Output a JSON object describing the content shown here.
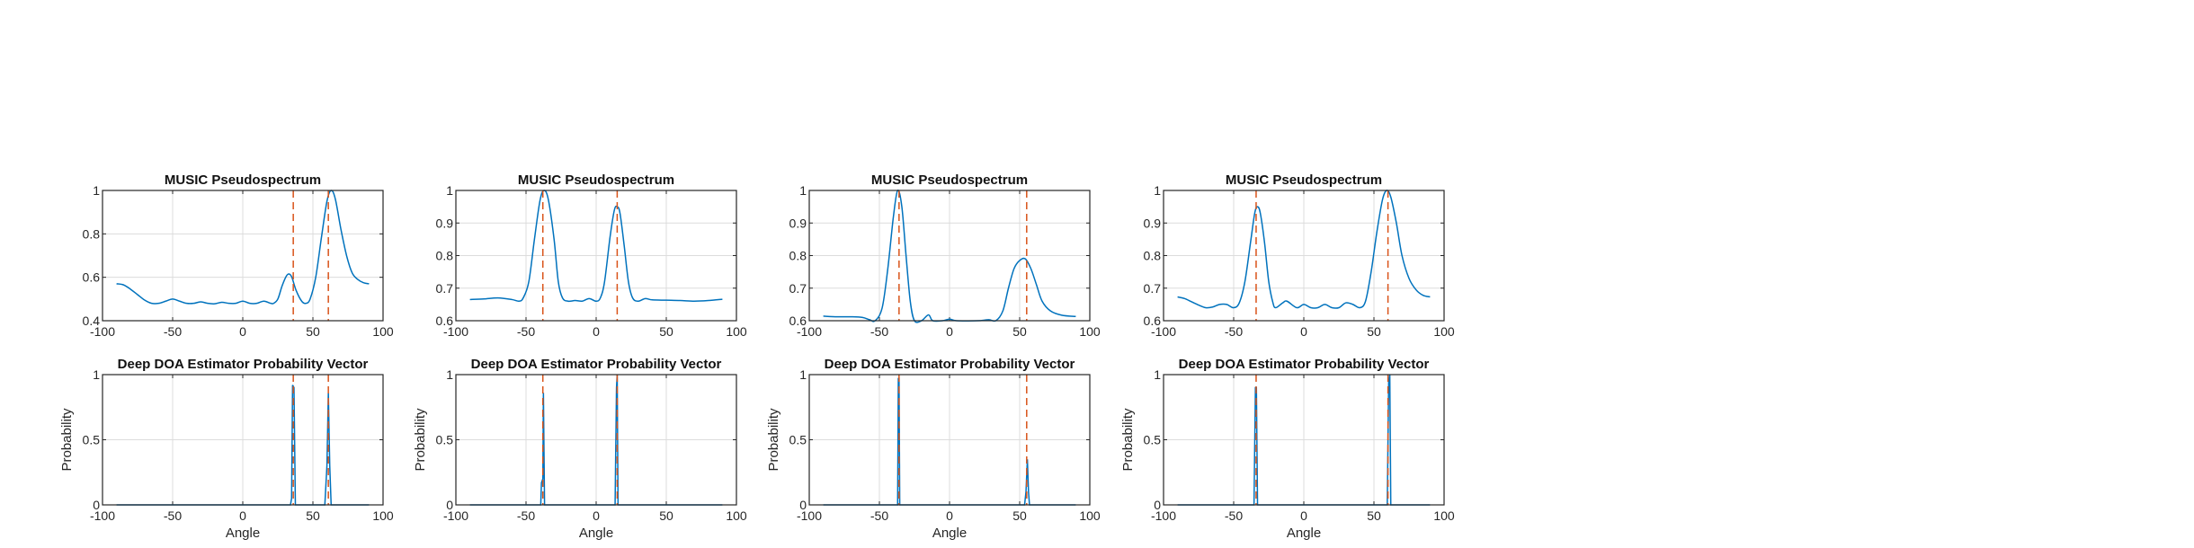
{
  "colors": {
    "curve": "#0072BD",
    "truth": "#D95319",
    "grid": "#dcdcdc",
    "axis": "#262626"
  },
  "chart_data": [
    {
      "type": "line",
      "title": "MUSIC Pseudospectrum",
      "xlabel": "",
      "ylabel": "",
      "xlim": [
        -100,
        100
      ],
      "ylim": [
        0.4,
        1
      ],
      "xticks": [
        -100,
        -50,
        0,
        50,
        100
      ],
      "yticks": [
        0.4,
        0.6,
        0.8,
        1
      ],
      "ytick_labels": [
        "0.4",
        "0.6",
        "0.8",
        "1"
      ],
      "grid": true,
      "truth_angles": [
        36,
        61
      ],
      "points": [
        [
          -90,
          0.57
        ],
        [
          -85,
          0.565
        ],
        [
          -80,
          0.545
        ],
        [
          -75,
          0.52
        ],
        [
          -70,
          0.495
        ],
        [
          -65,
          0.48
        ],
        [
          -60,
          0.48
        ],
        [
          -55,
          0.49
        ],
        [
          -50,
          0.5
        ],
        [
          -45,
          0.49
        ],
        [
          -40,
          0.48
        ],
        [
          -35,
          0.48
        ],
        [
          -30,
          0.487
        ],
        [
          -25,
          0.48
        ],
        [
          -20,
          0.478
        ],
        [
          -15,
          0.485
        ],
        [
          -10,
          0.48
        ],
        [
          -5,
          0.48
        ],
        [
          0,
          0.49
        ],
        [
          5,
          0.48
        ],
        [
          10,
          0.48
        ],
        [
          15,
          0.49
        ],
        [
          20,
          0.48
        ],
        [
          22,
          0.48
        ],
        [
          25,
          0.5
        ],
        [
          28,
          0.56
        ],
        [
          31,
          0.605
        ],
        [
          33,
          0.615
        ],
        [
          35,
          0.6
        ],
        [
          38,
          0.54
        ],
        [
          42,
          0.49
        ],
        [
          45,
          0.48
        ],
        [
          48,
          0.5
        ],
        [
          52,
          0.6
        ],
        [
          56,
          0.78
        ],
        [
          60,
          0.95
        ],
        [
          63,
          1.0
        ],
        [
          66,
          0.96
        ],
        [
          70,
          0.82
        ],
        [
          74,
          0.7
        ],
        [
          78,
          0.62
        ],
        [
          82,
          0.59
        ],
        [
          86,
          0.575
        ],
        [
          90,
          0.57
        ]
      ]
    },
    {
      "type": "line",
      "title": "MUSIC Pseudospectrum",
      "xlabel": "",
      "ylabel": "",
      "xlim": [
        -100,
        100
      ],
      "ylim": [
        0.6,
        1
      ],
      "xticks": [
        -100,
        -50,
        0,
        50,
        100
      ],
      "yticks": [
        0.6,
        0.7,
        0.8,
        0.9,
        1
      ],
      "ytick_labels": [
        "0.6",
        "0.7",
        "0.8",
        "0.9",
        "1"
      ],
      "grid": true,
      "truth_angles": [
        -38,
        15
      ],
      "points": [
        [
          -90,
          0.665
        ],
        [
          -80,
          0.667
        ],
        [
          -70,
          0.67
        ],
        [
          -60,
          0.665
        ],
        [
          -55,
          0.66
        ],
        [
          -52,
          0.67
        ],
        [
          -48,
          0.72
        ],
        [
          -44,
          0.85
        ],
        [
          -40,
          0.97
        ],
        [
          -37,
          1.0
        ],
        [
          -34,
          0.97
        ],
        [
          -30,
          0.85
        ],
        [
          -27,
          0.72
        ],
        [
          -24,
          0.67
        ],
        [
          -20,
          0.66
        ],
        [
          -15,
          0.662
        ],
        [
          -10,
          0.66
        ],
        [
          -5,
          0.668
        ],
        [
          0,
          0.66
        ],
        [
          3,
          0.67
        ],
        [
          6,
          0.72
        ],
        [
          10,
          0.86
        ],
        [
          13,
          0.94
        ],
        [
          15,
          0.95
        ],
        [
          17,
          0.93
        ],
        [
          20,
          0.83
        ],
        [
          23,
          0.72
        ],
        [
          26,
          0.67
        ],
        [
          30,
          0.66
        ],
        [
          35,
          0.668
        ],
        [
          40,
          0.664
        ],
        [
          50,
          0.663
        ],
        [
          60,
          0.662
        ],
        [
          70,
          0.66
        ],
        [
          80,
          0.662
        ],
        [
          90,
          0.666
        ]
      ]
    },
    {
      "type": "line",
      "title": "MUSIC Pseudospectrum",
      "xlabel": "",
      "ylabel": "",
      "xlim": [
        -100,
        100
      ],
      "ylim": [
        0.6,
        1
      ],
      "xticks": [
        -100,
        -50,
        0,
        50,
        100
      ],
      "yticks": [
        0.6,
        0.7,
        0.8,
        0.9,
        1
      ],
      "ytick_labels": [
        "0.6",
        "0.7",
        "0.8",
        "0.9",
        "1"
      ],
      "grid": true,
      "truth_angles": [
        -36,
        55
      ],
      "points": [
        [
          -90,
          0.614
        ],
        [
          -80,
          0.612
        ],
        [
          -70,
          0.612
        ],
        [
          -62,
          0.61
        ],
        [
          -57,
          0.603
        ],
        [
          -53,
          0.6
        ],
        [
          -48,
          0.64
        ],
        [
          -44,
          0.76
        ],
        [
          -40,
          0.92
        ],
        [
          -37,
          1.0
        ],
        [
          -34,
          0.95
        ],
        [
          -31,
          0.8
        ],
        [
          -28,
          0.66
        ],
        [
          -25,
          0.6
        ],
        [
          -20,
          0.6
        ],
        [
          -15,
          0.618
        ],
        [
          -12,
          0.6
        ],
        [
          -5,
          0.6
        ],
        [
          0,
          0.605
        ],
        [
          5,
          0.6
        ],
        [
          20,
          0.6
        ],
        [
          28,
          0.603
        ],
        [
          33,
          0.6
        ],
        [
          38,
          0.63
        ],
        [
          42,
          0.7
        ],
        [
          46,
          0.76
        ],
        [
          50,
          0.785
        ],
        [
          54,
          0.79
        ],
        [
          58,
          0.76
        ],
        [
          62,
          0.71
        ],
        [
          66,
          0.66
        ],
        [
          72,
          0.63
        ],
        [
          80,
          0.617
        ],
        [
          90,
          0.613
        ]
      ]
    },
    {
      "type": "line",
      "title": "MUSIC Pseudospectrum",
      "xlabel": "",
      "ylabel": "",
      "xlim": [
        -100,
        100
      ],
      "ylim": [
        0.6,
        1
      ],
      "xticks": [
        -100,
        -50,
        0,
        50,
        100
      ],
      "yticks": [
        0.6,
        0.7,
        0.8,
        0.9,
        1
      ],
      "ytick_labels": [
        "0.6",
        "0.7",
        "0.8",
        "0.9",
        "1"
      ],
      "grid": true,
      "truth_angles": [
        -34,
        60
      ],
      "points": [
        [
          -90,
          0.673
        ],
        [
          -85,
          0.668
        ],
        [
          -80,
          0.658
        ],
        [
          -75,
          0.648
        ],
        [
          -70,
          0.64
        ],
        [
          -65,
          0.642
        ],
        [
          -60,
          0.65
        ],
        [
          -55,
          0.65
        ],
        [
          -50,
          0.64
        ],
        [
          -46,
          0.655
        ],
        [
          -42,
          0.72
        ],
        [
          -38,
          0.84
        ],
        [
          -35,
          0.93
        ],
        [
          -33,
          0.95
        ],
        [
          -31,
          0.93
        ],
        [
          -28,
          0.84
        ],
        [
          -25,
          0.72
        ],
        [
          -22,
          0.655
        ],
        [
          -20,
          0.64
        ],
        [
          -15,
          0.655
        ],
        [
          -12,
          0.66
        ],
        [
          -5,
          0.64
        ],
        [
          0,
          0.65
        ],
        [
          5,
          0.64
        ],
        [
          10,
          0.64
        ],
        [
          15,
          0.65
        ],
        [
          20,
          0.64
        ],
        [
          25,
          0.64
        ],
        [
          30,
          0.655
        ],
        [
          35,
          0.65
        ],
        [
          40,
          0.64
        ],
        [
          44,
          0.66
        ],
        [
          48,
          0.75
        ],
        [
          52,
          0.87
        ],
        [
          56,
          0.97
        ],
        [
          59,
          1.0
        ],
        [
          62,
          0.98
        ],
        [
          66,
          0.9
        ],
        [
          70,
          0.8
        ],
        [
          75,
          0.73
        ],
        [
          80,
          0.695
        ],
        [
          85,
          0.678
        ],
        [
          90,
          0.673
        ]
      ]
    },
    {
      "type": "line",
      "title": "Deep DOA Estimator Probability Vector",
      "xlabel": "Angle",
      "ylabel": "Probability",
      "xlim": [
        -100,
        100
      ],
      "ylim": [
        0,
        1
      ],
      "xticks": [
        -100,
        -50,
        0,
        50,
        100
      ],
      "yticks": [
        0,
        0.5,
        1
      ],
      "ytick_labels": [
        "0",
        "0.5",
        "1"
      ],
      "grid": true,
      "truth_angles": [
        36,
        61
      ],
      "points": [
        [
          -90,
          0
        ],
        [
          34,
          0
        ],
        [
          34.8,
          0.05
        ],
        [
          35.5,
          0.92
        ],
        [
          36.5,
          0.9
        ],
        [
          37.5,
          0
        ],
        [
          58.5,
          0
        ],
        [
          60,
          0.3
        ],
        [
          61,
          0.86
        ],
        [
          62,
          0.3
        ],
        [
          63,
          0
        ],
        [
          90,
          0
        ]
      ]
    },
    {
      "type": "line",
      "title": "Deep DOA Estimator Probability Vector",
      "xlabel": "Angle",
      "ylabel": "Probability",
      "xlim": [
        -100,
        100
      ],
      "ylim": [
        0,
        1
      ],
      "xticks": [
        -100,
        -50,
        0,
        50,
        100
      ],
      "yticks": [
        0,
        0.5,
        1
      ],
      "ytick_labels": [
        "0",
        "0.5",
        "1"
      ],
      "grid": true,
      "truth_angles": [
        -38,
        15
      ],
      "points": [
        [
          -90,
          0
        ],
        [
          -39.5,
          0
        ],
        [
          -39,
          0.17
        ],
        [
          -38,
          0.2
        ],
        [
          -37.6,
          0.86
        ],
        [
          -36.8,
          0
        ],
        [
          13.5,
          0
        ],
        [
          14.5,
          0.9
        ],
        [
          15,
          1.0
        ],
        [
          15.6,
          0
        ],
        [
          90,
          0
        ]
      ]
    },
    {
      "type": "line",
      "title": "Deep DOA Estimator Probability Vector",
      "xlabel": "Angle",
      "ylabel": "Probability",
      "xlim": [
        -100,
        100
      ],
      "ylim": [
        0,
        1
      ],
      "xticks": [
        -100,
        -50,
        0,
        50,
        100
      ],
      "yticks": [
        0,
        0.5,
        1
      ],
      "ytick_labels": [
        "0",
        "0.5",
        "1"
      ],
      "grid": true,
      "truth_angles": [
        -36,
        55
      ],
      "points": [
        [
          -90,
          0
        ],
        [
          -37,
          0
        ],
        [
          -36.5,
          0.97
        ],
        [
          -36,
          0.97
        ],
        [
          -35.5,
          0
        ],
        [
          53.5,
          0
        ],
        [
          54.5,
          0.1
        ],
        [
          55.5,
          0.35
        ],
        [
          56.3,
          0.1
        ],
        [
          57,
          0
        ],
        [
          90,
          0
        ]
      ]
    },
    {
      "type": "line",
      "title": "Deep DOA Estimator Probability Vector",
      "xlabel": "Angle",
      "ylabel": "Probability",
      "xlim": [
        -100,
        100
      ],
      "ylim": [
        0,
        1
      ],
      "xticks": [
        -100,
        -50,
        0,
        50,
        100
      ],
      "yticks": [
        0,
        0.5,
        1
      ],
      "ytick_labels": [
        "0",
        "0.5",
        "1"
      ],
      "grid": true,
      "truth_angles": [
        -34,
        60
      ],
      "points": [
        [
          -90,
          0
        ],
        [
          -35.5,
          0
        ],
        [
          -34.5,
          0.9
        ],
        [
          -33.8,
          0.9
        ],
        [
          -33,
          0
        ],
        [
          59.5,
          0
        ],
        [
          60.5,
          0.95
        ],
        [
          61.3,
          1.0
        ],
        [
          62,
          0
        ],
        [
          90,
          0
        ]
      ]
    }
  ]
}
